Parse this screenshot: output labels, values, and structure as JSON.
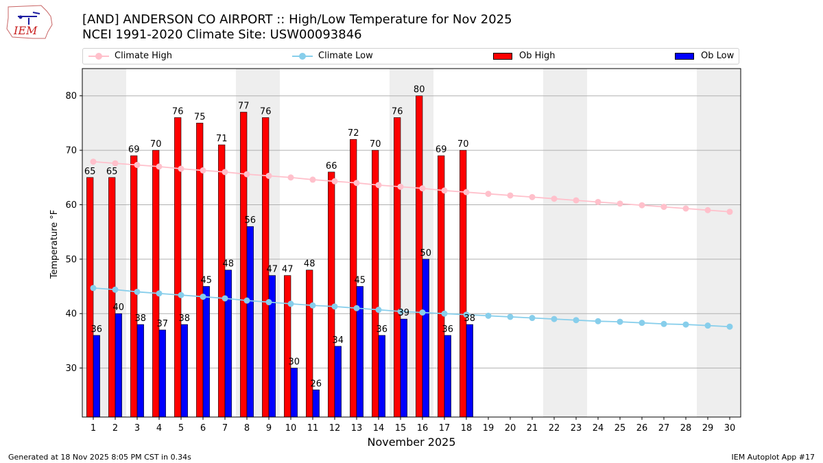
{
  "title_line1": "[AND] ANDERSON CO AIRPORT :: High/Low Temperature for Nov 2025",
  "title_line2": "NCEI 1991-2020 Climate Site: USW00093846",
  "logo_text": "IEM",
  "footer_left": "Generated at 18 Nov 2025 8:05 PM CST in 0.34s",
  "footer_right": "IEM Autoplot App #17",
  "colors": {
    "climate_high": "#ffc0cb",
    "climate_low": "#87ceeb",
    "ob_high": "#ff0000",
    "ob_low": "#0000ff",
    "weekend_shade": "#eeeeee",
    "grid": "#b0b0b0"
  },
  "legend": {
    "climate_high": "Climate High",
    "climate_low": "Climate Low",
    "ob_high": "Ob High",
    "ob_low": "Ob Low"
  },
  "chart_data": {
    "type": "bar",
    "xlabel": "November 2025",
    "ylabel": "Temperature °F",
    "ylim": [
      21,
      85
    ],
    "yticks": [
      30,
      40,
      50,
      60,
      70,
      80
    ],
    "grid": "horizontal",
    "legend_position": "top",
    "x": [
      1,
      2,
      3,
      4,
      5,
      6,
      7,
      8,
      9,
      10,
      11,
      12,
      13,
      14,
      15,
      16,
      17,
      18,
      19,
      20,
      21,
      22,
      23,
      24,
      25,
      26,
      27,
      28,
      29,
      30
    ],
    "shaded_days": [
      1,
      2,
      8,
      9,
      15,
      16,
      22,
      23,
      29,
      30
    ],
    "series": [
      {
        "name": "Climate High",
        "kind": "line",
        "values": [
          67.9,
          67.6,
          67.3,
          67.0,
          66.6,
          66.3,
          66.0,
          65.6,
          65.3,
          65.0,
          64.6,
          64.3,
          64.0,
          63.6,
          63.3,
          63.0,
          62.6,
          62.3,
          62.0,
          61.7,
          61.4,
          61.1,
          60.8,
          60.5,
          60.2,
          59.9,
          59.6,
          59.3,
          59.0,
          58.7
        ]
      },
      {
        "name": "Climate Low",
        "kind": "line",
        "values": [
          44.7,
          44.4,
          44.0,
          43.7,
          43.4,
          43.1,
          42.8,
          42.4,
          42.1,
          41.8,
          41.5,
          41.3,
          41.0,
          40.7,
          40.4,
          40.2,
          40.0,
          39.8,
          39.6,
          39.4,
          39.2,
          39.0,
          38.8,
          38.6,
          38.5,
          38.3,
          38.1,
          38.0,
          37.8,
          37.6
        ]
      },
      {
        "name": "Ob High",
        "kind": "bar",
        "values": [
          65,
          65,
          69,
          70,
          76,
          75,
          71,
          77,
          76,
          47,
          48,
          66,
          72,
          70,
          76,
          80,
          69,
          70,
          null,
          null,
          null,
          null,
          null,
          null,
          null,
          null,
          null,
          null,
          null,
          null
        ]
      },
      {
        "name": "Ob Low",
        "kind": "bar",
        "values": [
          36,
          40,
          38,
          37,
          38,
          45,
          48,
          56,
          47,
          30,
          26,
          34,
          45,
          36,
          39,
          50,
          36,
          38,
          null,
          null,
          null,
          null,
          null,
          null,
          null,
          null,
          null,
          null,
          null,
          null
        ]
      }
    ]
  }
}
